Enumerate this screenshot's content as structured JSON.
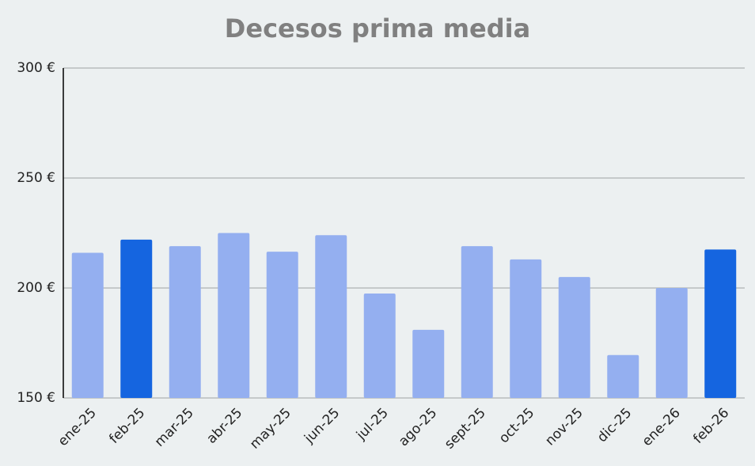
{
  "chart_data": {
    "type": "bar",
    "title": "Decesos prima media",
    "categories": [
      "ene-25",
      "feb-25",
      "mar-25",
      "abr-25",
      "may-25",
      "jun-25",
      "jul-25",
      "ago-25",
      "sept-25",
      "oct-25",
      "nov-25",
      "dic-25",
      "ene-26",
      "feb-26"
    ],
    "values": [
      216,
      222,
      219,
      225,
      216.5,
      224,
      197.5,
      181,
      219,
      213,
      205,
      169.5,
      200,
      217.5
    ],
    "colors": [
      "#94aff0",
      "#1565e0",
      "#94aff0",
      "#94aff0",
      "#94aff0",
      "#94aff0",
      "#94aff0",
      "#94aff0",
      "#94aff0",
      "#94aff0",
      "#94aff0",
      "#94aff0",
      "#94aff0",
      "#1565e0"
    ],
    "ylim": [
      150,
      300
    ],
    "yticks": [
      {
        "value": 150,
        "label": "150 €"
      },
      {
        "value": 200,
        "label": "200 €"
      },
      {
        "value": 250,
        "label": "250 €"
      },
      {
        "value": 300,
        "label": "300 €"
      }
    ],
    "grid": true
  }
}
